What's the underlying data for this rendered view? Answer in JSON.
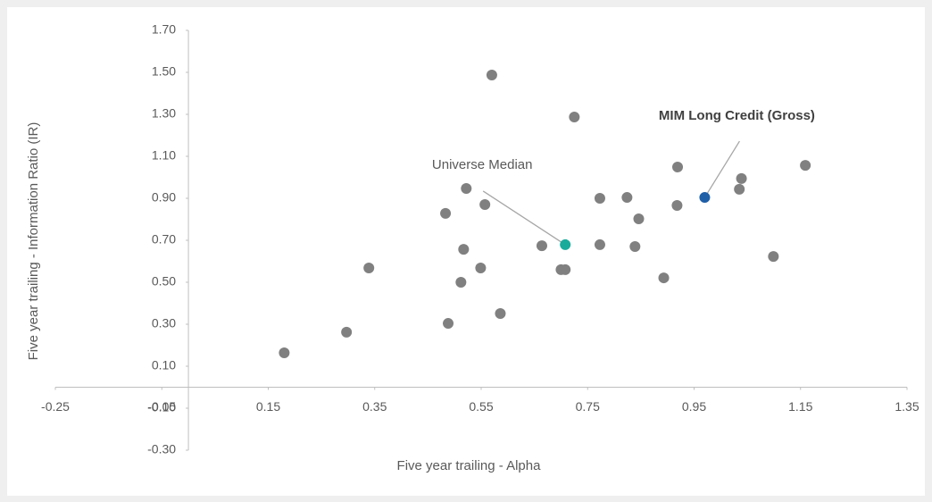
{
  "chart_data": {
    "type": "scatter",
    "x_label": "Five year trailing - Alpha",
    "y_label": "Five year trailing - Information Ratio (IR)",
    "xlim": [
      -0.25,
      1.35
    ],
    "ylim": [
      -0.3,
      1.7
    ],
    "xticks": [
      -0.25,
      -0.05,
      0.15,
      0.35,
      0.55,
      0.75,
      0.95,
      1.15,
      1.35
    ],
    "yticks": [
      {
        "value": -0.3,
        "label": "-0.30"
      },
      {
        "value": -0.1,
        "label": "-0.10"
      },
      {
        "value": 0.1,
        "label": "0.10"
      },
      {
        "value": 0.3,
        "label": "0.30"
      },
      {
        "value": 0.5,
        "label": "0.50"
      },
      {
        "value": 0.7,
        "label": "0.70"
      },
      {
        "value": 0.9,
        "label": "0.90"
      },
      {
        "value": 1.1,
        "label": "1.10"
      },
      {
        "value": 1.3,
        "label": "1.30"
      },
      {
        "value": 1.5,
        "label": "1.50"
      },
      {
        "value": 1.7,
        "label": "1.70"
      }
    ],
    "grid": false,
    "series": [
      {
        "color": "#808080",
        "x": [
          0.18,
          0.297,
          0.339,
          0.483,
          0.488,
          0.512,
          0.517,
          0.522,
          0.549,
          0.557,
          0.57,
          0.586,
          0.664,
          0.7,
          0.708,
          0.725,
          0.773,
          0.773,
          0.824,
          0.839,
          0.846,
          0.893,
          0.918,
          0.919,
          1.035,
          1.039,
          1.099,
          1.159
        ],
        "values": [
          0.164,
          0.262,
          0.568,
          0.828,
          0.304,
          0.5,
          0.657,
          0.947,
          0.568,
          0.87,
          1.487,
          0.351,
          0.674,
          0.56,
          0.56,
          1.287,
          0.9,
          0.679,
          0.904,
          0.67,
          0.802,
          0.521,
          0.866,
          1.049,
          0.943,
          0.994,
          0.623,
          1.057
        ]
      }
    ],
    "annotations": [
      {
        "text": "Universe Median",
        "x": 0.708,
        "y": 0.679,
        "color": "#1aab9b",
        "bold": false
      },
      {
        "text": "MIM Long Credit (Gross)",
        "x": 0.97,
        "y": 0.904,
        "color": "#1f5fa8",
        "bold": true
      }
    ]
  }
}
